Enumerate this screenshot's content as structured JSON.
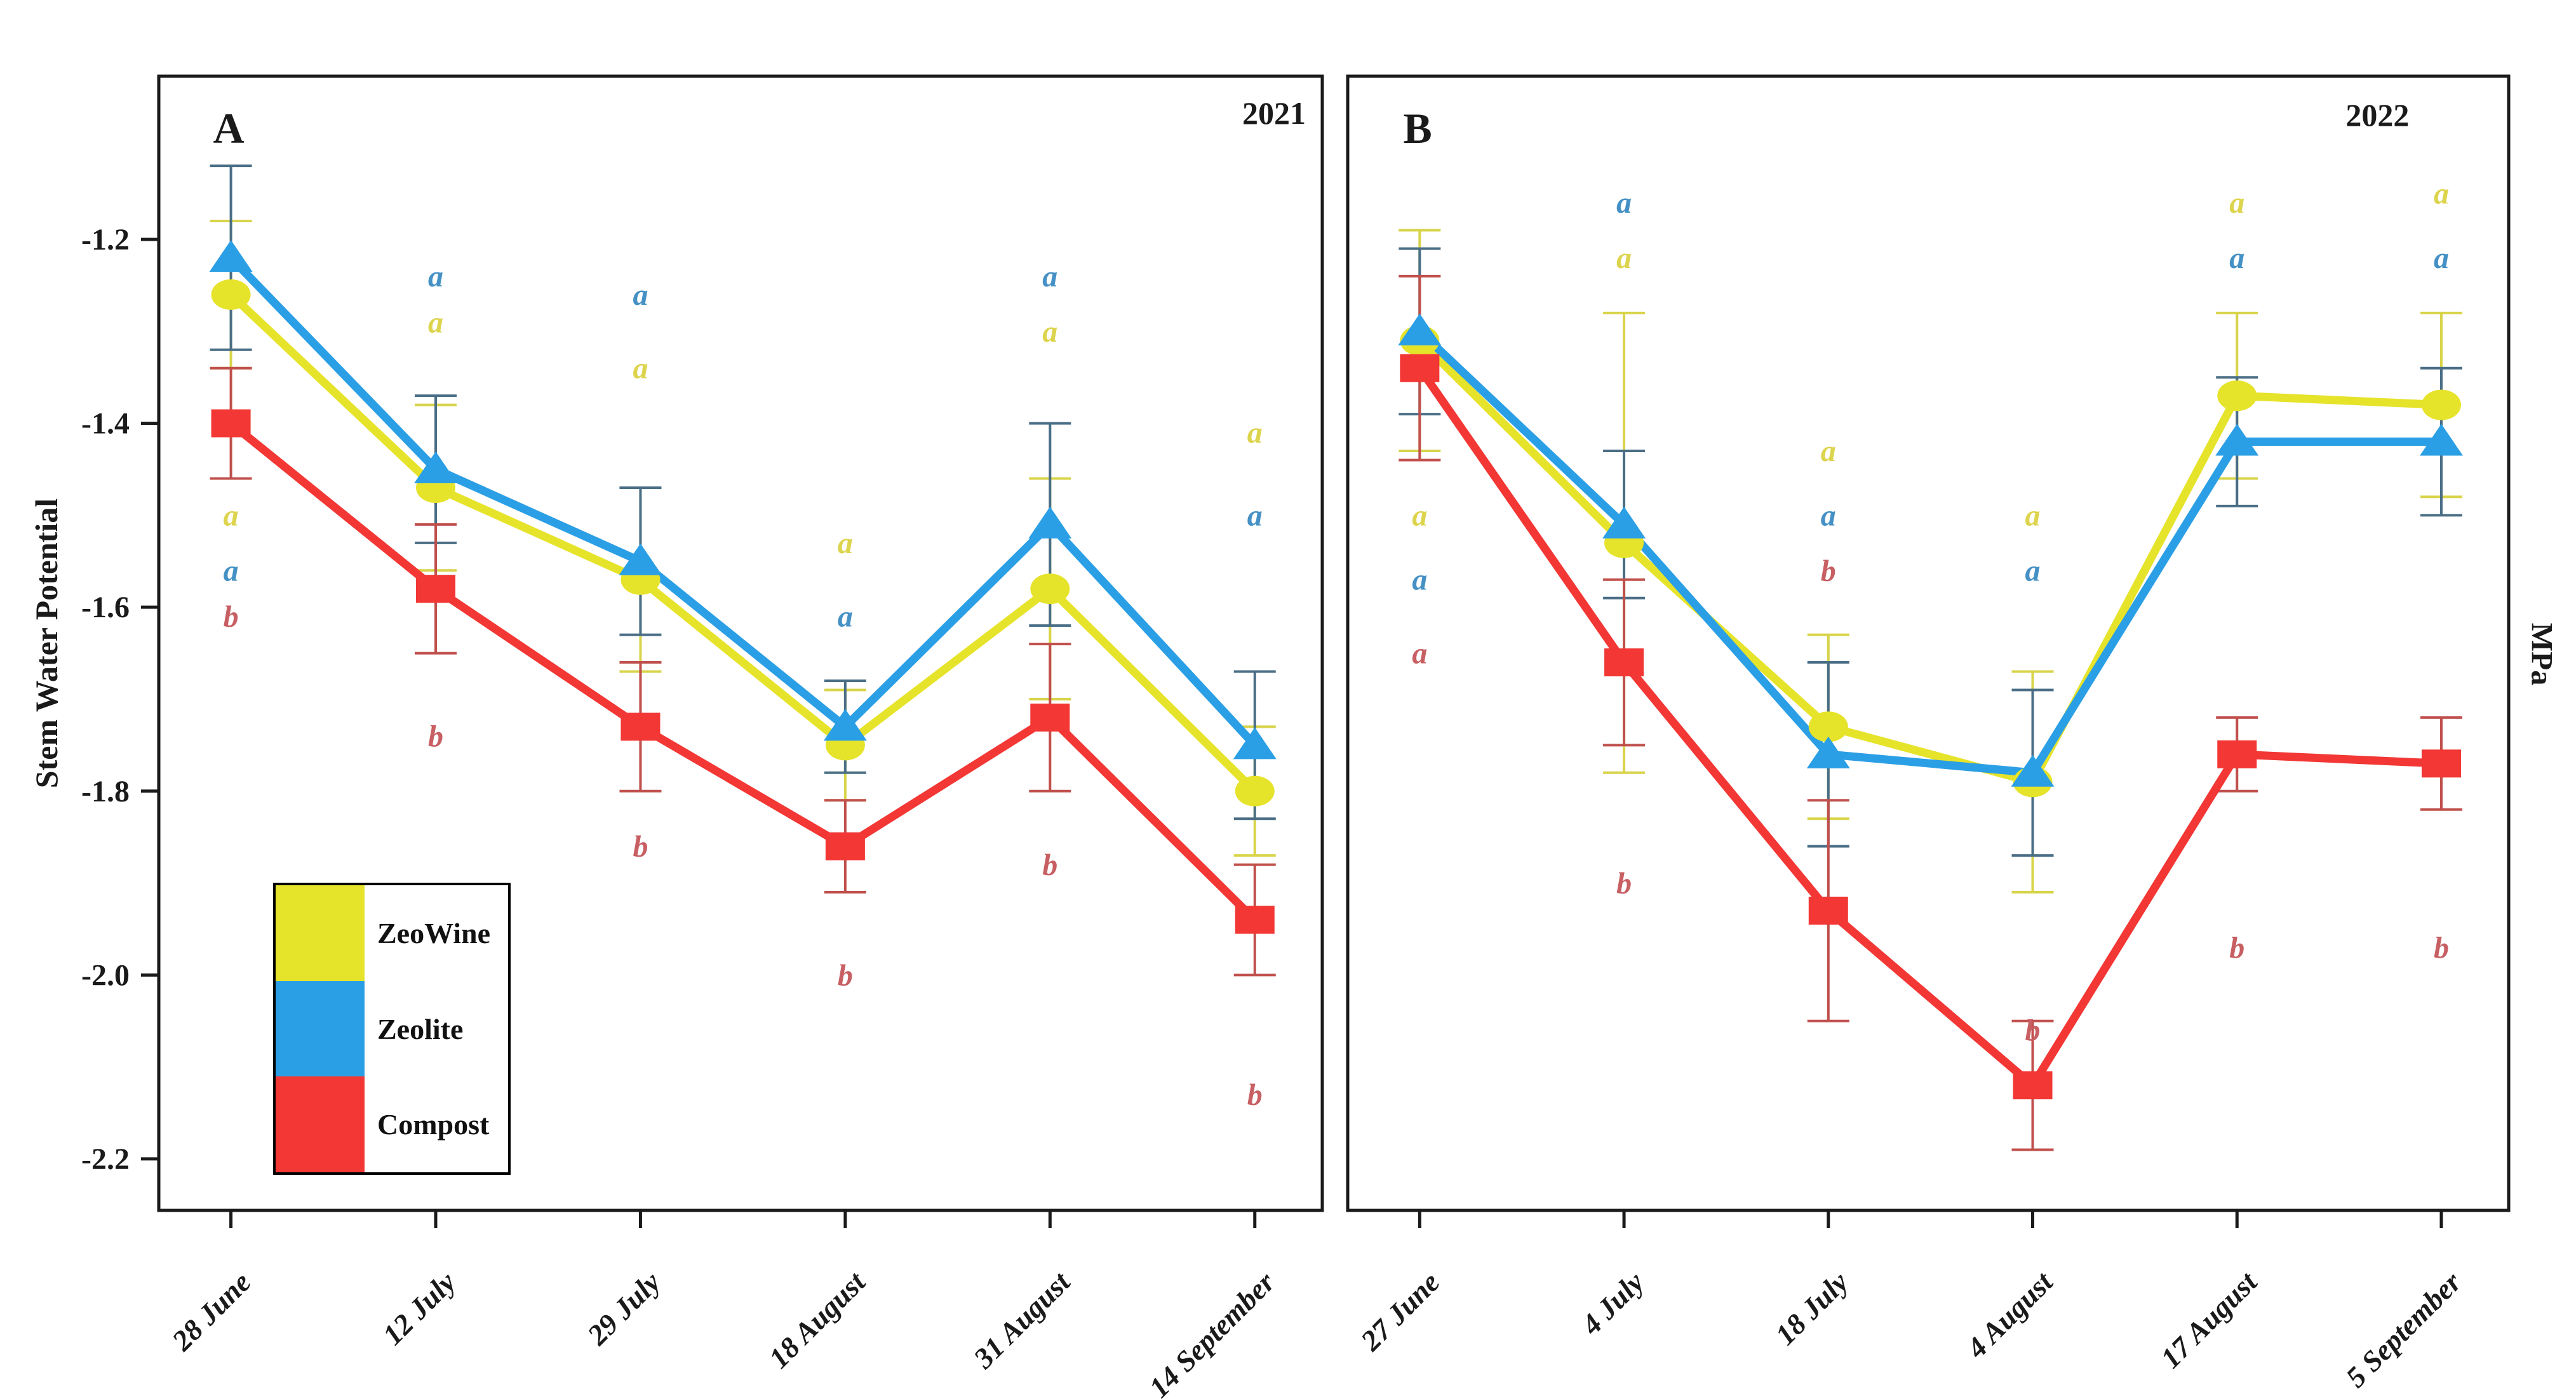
{
  "figure": {
    "y_axis_label": "Stem Water Potential",
    "y_unit_label": "MPa",
    "y_tick_labels": [
      "-1.2",
      "-1.4",
      "-1.6",
      "-1.8",
      "-2.0",
      "-2.2"
    ],
    "legend": {
      "items": [
        {
          "label": "ZeoWine",
          "color": "#e6e32b"
        },
        {
          "label": "Zeolite",
          "color": "#2b9fe5"
        },
        {
          "label": "Compost",
          "color": "#f23734"
        }
      ]
    },
    "colors": {
      "series": {
        "ZeoWine": "#e6e32b",
        "Zeolite": "#2b9fe5",
        "Compost": "#f23734"
      },
      "letters": {
        "ZeoWine": "#ddd44e",
        "Zeolite": "#4591c5",
        "Compost": "#c75f63"
      },
      "errorbars": {
        "ZeoWine": "#d8d44a",
        "Zeolite": "#4a6e86",
        "Compost": "#c0504c"
      },
      "axis": "#1a1a1a"
    }
  },
  "chart_data": [
    {
      "type": "line",
      "panel": "A",
      "year": "2021",
      "categories": [
        "28 June",
        "12 July",
        "29 July",
        "18 August",
        "31 August",
        "14 September"
      ],
      "ylabel": "Stem Water Potential (MPa)",
      "yticks": [
        -1.2,
        -1.4,
        -1.6,
        -1.8,
        -2.0,
        -2.2
      ],
      "ylim": [
        -2.256,
        -1.0225
      ],
      "series": [
        {
          "name": "ZeoWine",
          "marker": "circle",
          "values": [
            -1.26,
            -1.47,
            -1.57,
            -1.75,
            -1.58,
            -1.8
          ],
          "errors": [
            0.08,
            0.09,
            0.1,
            0.06,
            0.12,
            0.07
          ]
        },
        {
          "name": "Zeolite",
          "marker": "triangle",
          "values": [
            -1.22,
            -1.45,
            -1.55,
            -1.73,
            -1.51,
            -1.75
          ],
          "errors": [
            0.1,
            0.08,
            0.08,
            0.05,
            0.11,
            0.08
          ]
        },
        {
          "name": "Compost",
          "marker": "square",
          "values": [
            -1.4,
            -1.58,
            -1.73,
            -1.86,
            -1.72,
            -1.94
          ],
          "errors": [
            0.06,
            0.07,
            0.07,
            0.05,
            0.08,
            0.06
          ]
        }
      ],
      "sig_letters": [
        [
          {
            "letter": "a",
            "series": "ZeoWine",
            "value": -1.5
          },
          {
            "letter": "a",
            "series": "Zeolite",
            "value": -1.56
          },
          {
            "letter": "b",
            "series": "Compost",
            "value": -1.61
          }
        ],
        [
          {
            "letter": "a",
            "series": "Zeolite",
            "value": -1.24
          },
          {
            "letter": "a",
            "series": "ZeoWine",
            "value": -1.29
          },
          {
            "letter": "b",
            "series": "Compost",
            "value": -1.74
          }
        ],
        [
          {
            "letter": "a",
            "series": "Zeolite",
            "value": -1.26
          },
          {
            "letter": "a",
            "series": "ZeoWine",
            "value": -1.34
          },
          {
            "letter": "b",
            "series": "Compost",
            "value": -1.86
          }
        ],
        [
          {
            "letter": "a",
            "series": "ZeoWine",
            "value": -1.53
          },
          {
            "letter": "a",
            "series": "Zeolite",
            "value": -1.61
          },
          {
            "letter": "b",
            "series": "Compost",
            "value": -2.0
          }
        ],
        [
          {
            "letter": "a",
            "series": "Zeolite",
            "value": -1.24
          },
          {
            "letter": "a",
            "series": "ZeoWine",
            "value": -1.3
          },
          {
            "letter": "b",
            "series": "Compost",
            "value": -1.88
          }
        ],
        [
          {
            "letter": "a",
            "series": "ZeoWine",
            "value": -1.41
          },
          {
            "letter": "a",
            "series": "Zeolite",
            "value": -1.5
          },
          {
            "letter": "b",
            "series": "Compost",
            "value": -2.13
          }
        ]
      ]
    },
    {
      "type": "line",
      "panel": "B",
      "year": "2022",
      "categories": [
        "27 June",
        "4 July",
        "18 July",
        "4 August",
        "17 August",
        "5 September"
      ],
      "ylabel": "Stem Water Potential (MPa)",
      "yticks": [
        -1.2,
        -1.4,
        -1.6,
        -1.8,
        -2.0,
        -2.2
      ],
      "ylim": [
        -2.256,
        -1.0225
      ],
      "series": [
        {
          "name": "ZeoWine",
          "marker": "circle",
          "values": [
            -1.31,
            -1.53,
            -1.73,
            -1.79,
            -1.37,
            -1.38
          ],
          "errors": [
            0.12,
            0.25,
            0.1,
            0.12,
            0.09,
            0.1
          ]
        },
        {
          "name": "Zeolite",
          "marker": "triangle",
          "values": [
            -1.3,
            -1.51,
            -1.76,
            -1.78,
            -1.42,
            -1.42
          ],
          "errors": [
            0.09,
            0.08,
            0.1,
            0.09,
            0.07,
            0.08
          ]
        },
        {
          "name": "Compost",
          "marker": "square",
          "values": [
            -1.34,
            -1.66,
            -1.93,
            -2.12,
            -1.76,
            -1.77
          ],
          "errors": [
            0.1,
            0.09,
            0.12,
            0.07,
            0.04,
            0.05
          ]
        }
      ],
      "sig_letters": [
        [
          {
            "letter": "a",
            "series": "ZeoWine",
            "value": -1.5
          },
          {
            "letter": "a",
            "series": "Zeolite",
            "value": -1.57
          },
          {
            "letter": "a",
            "series": "Compost",
            "value": -1.65
          }
        ],
        [
          {
            "letter": "a",
            "series": "Zeolite",
            "value": -1.16
          },
          {
            "letter": "a",
            "series": "ZeoWine",
            "value": -1.22
          },
          {
            "letter": "b",
            "series": "Compost",
            "value": -1.9
          }
        ],
        [
          {
            "letter": "a",
            "series": "ZeoWine",
            "value": -1.43
          },
          {
            "letter": "a",
            "series": "Zeolite",
            "value": -1.5
          },
          {
            "letter": "b",
            "series": "Compost",
            "value": -1.56
          }
        ],
        [
          {
            "letter": "a",
            "series": "ZeoWine",
            "value": -1.5
          },
          {
            "letter": "a",
            "series": "Zeolite",
            "value": -1.56
          },
          {
            "letter": "b",
            "series": "Compost",
            "value": -2.06
          }
        ],
        [
          {
            "letter": "a",
            "series": "ZeoWine",
            "value": -1.16
          },
          {
            "letter": "a",
            "series": "Zeolite",
            "value": -1.22
          },
          {
            "letter": "b",
            "series": "Compost",
            "value": -1.97
          }
        ],
        [
          {
            "letter": "a",
            "series": "ZeoWine",
            "value": -1.15
          },
          {
            "letter": "a",
            "series": "Zeolite",
            "value": -1.22
          },
          {
            "letter": "b",
            "series": "Compost",
            "value": -1.97
          }
        ]
      ]
    }
  ]
}
